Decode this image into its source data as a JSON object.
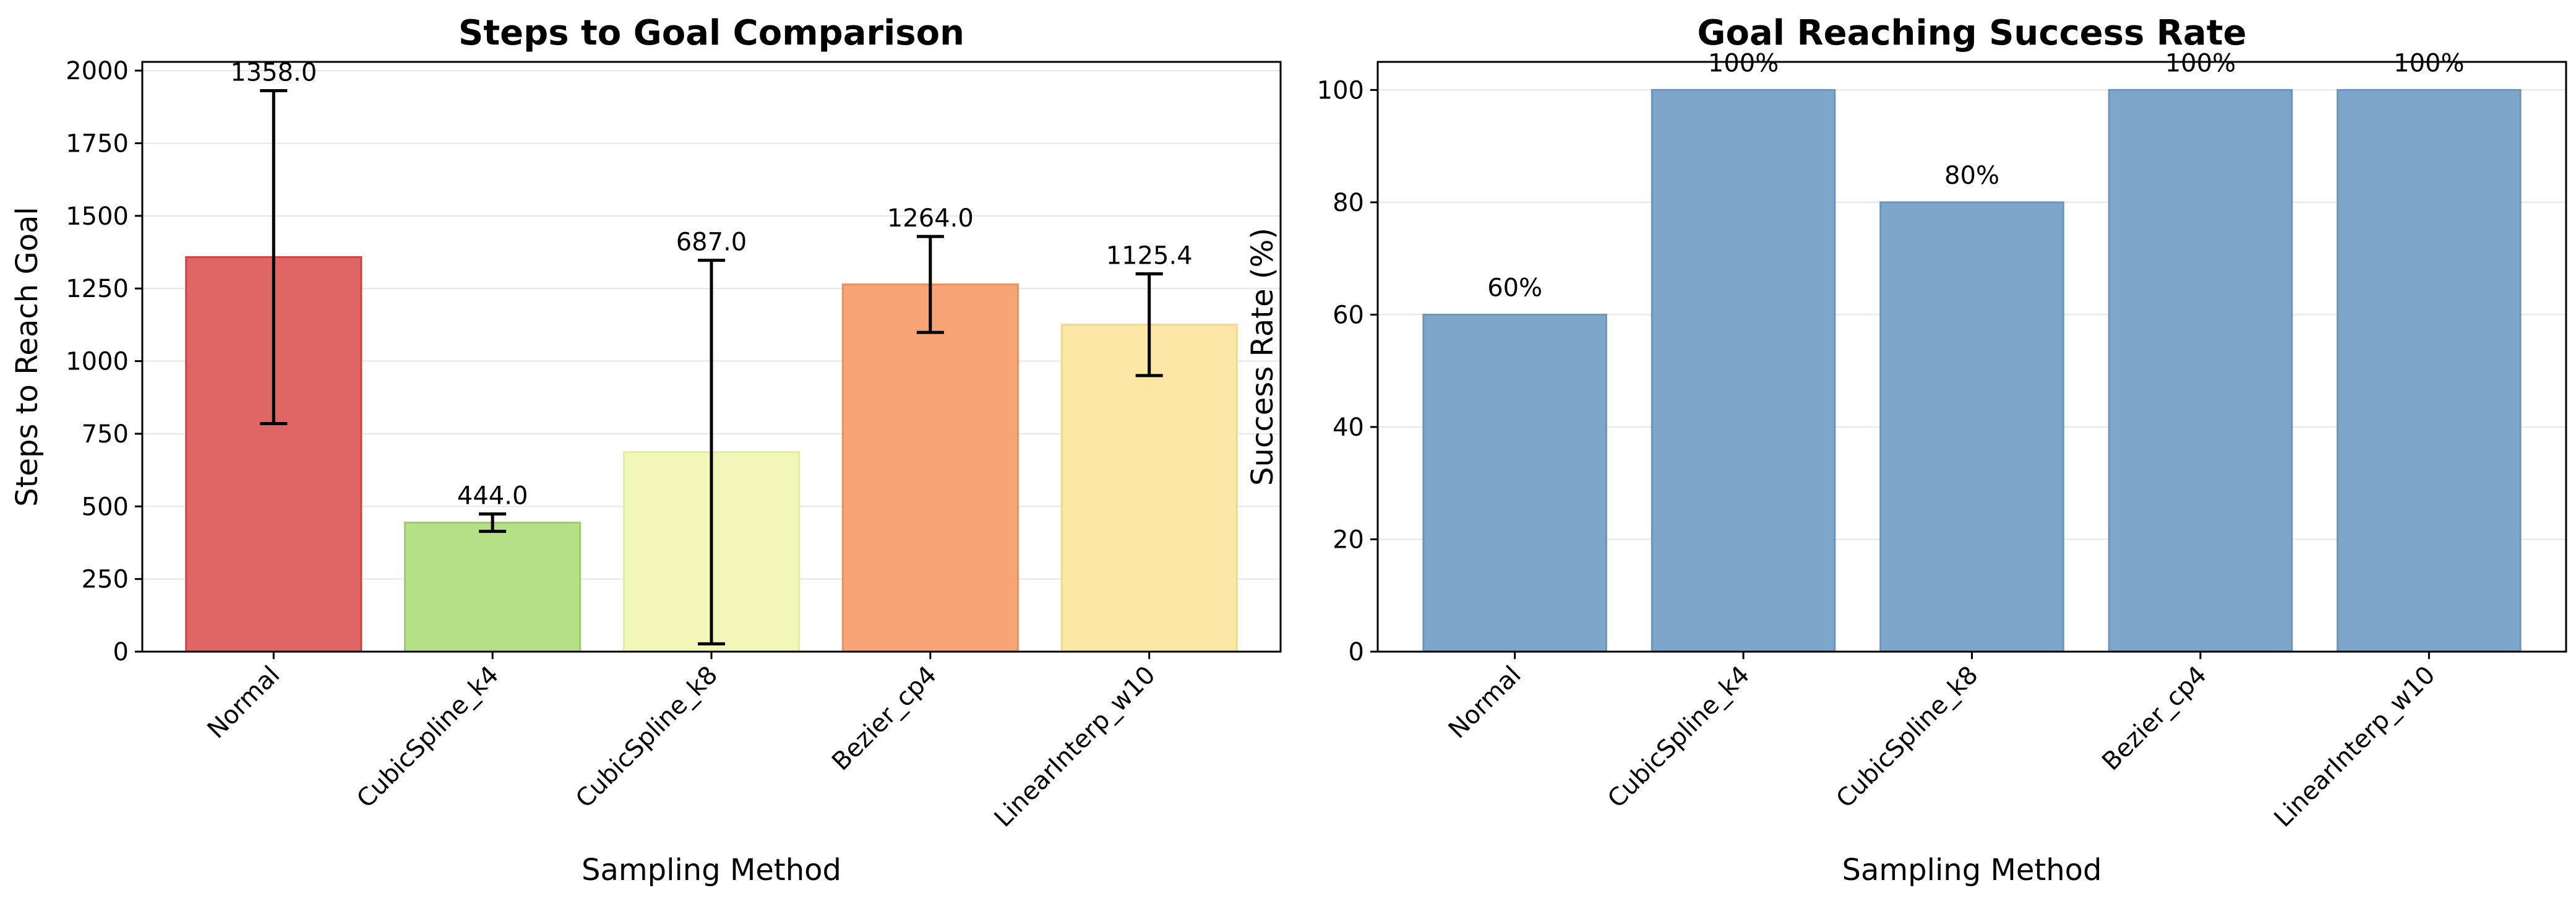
{
  "chart_data": [
    {
      "type": "bar",
      "title": "Steps to Goal Comparison",
      "xlabel": "Sampling Method",
      "ylabel": "Steps to Reach Goal",
      "categories": [
        "Normal",
        "CubicSpline_k4",
        "CubicSpline_k8",
        "Bezier_cp4",
        "LinearInterp_w10"
      ],
      "values": [
        1358.0,
        444.0,
        687.0,
        1264.0,
        1125.4
      ],
      "errors": [
        573,
        30,
        660,
        165,
        175
      ],
      "value_labels": [
        "1358.0",
        "444.0",
        "687.0",
        "1264.0",
        "1125.4"
      ],
      "colors": [
        "#e06666",
        "#b6e088",
        "#f0f7b8",
        "#f7a477",
        "#fde7a6"
      ],
      "edge_colors": [
        "#cc4444",
        "#9ccc6a",
        "#e3efa0",
        "#e89060",
        "#f3d88c"
      ],
      "ylim": [
        0,
        2030
      ],
      "yticks": [
        0,
        250,
        500,
        750,
        1000,
        1250,
        1500,
        1750,
        2000
      ],
      "ytick_labels": [
        "0",
        "250",
        "500",
        "750",
        "1000",
        "1250",
        "1500",
        "1750",
        "2000"
      ],
      "grid": "y"
    },
    {
      "type": "bar",
      "title": "Goal Reaching Success Rate",
      "xlabel": "Sampling Method",
      "ylabel": "Success Rate (%)",
      "categories": [
        "Normal",
        "CubicSpline_k4",
        "CubicSpline_k8",
        "Bezier_cp4",
        "LinearInterp_w10"
      ],
      "values": [
        60,
        100,
        80,
        100,
        100
      ],
      "value_labels": [
        "60%",
        "100%",
        "80%",
        "100%",
        "100%"
      ],
      "colors": [
        "#7ea6ca",
        "#7ea6ca",
        "#7ea6ca",
        "#7ea6ca",
        "#7ea6ca"
      ],
      "edge_colors": [
        "#6d95ba",
        "#6d95ba",
        "#6d95ba",
        "#6d95ba",
        "#6d95ba"
      ],
      "ylim": [
        0,
        105
      ],
      "yticks": [
        0,
        20,
        40,
        60,
        80,
        100
      ],
      "ytick_labels": [
        "0",
        "20",
        "40",
        "60",
        "80",
        "100"
      ],
      "grid": "y"
    }
  ]
}
